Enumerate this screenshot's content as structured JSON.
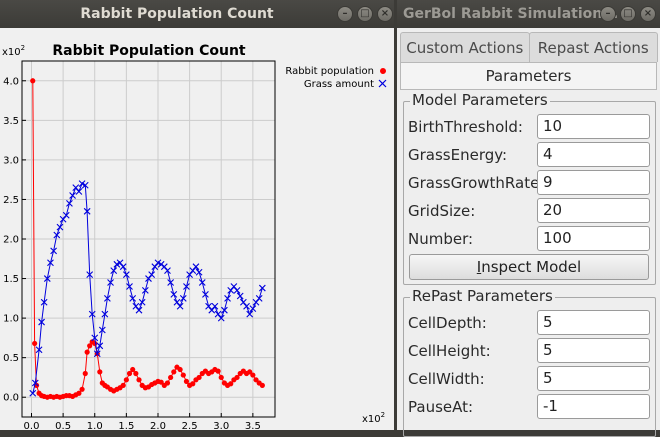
{
  "left_window": {
    "title": "Rabbit Population Count",
    "controls": [
      "–",
      "□",
      "×"
    ]
  },
  "chart": {
    "title": "Rabbit Population Count",
    "x_exponent_label": "x10",
    "x_exponent_power": "2",
    "y_exponent_label": "x10",
    "y_exponent_power": "2"
  },
  "chart_data": {
    "type": "line",
    "title": "Rabbit Population Count",
    "xlabel": "",
    "ylabel": "",
    "x_scale": "x10^2",
    "y_scale": "x10^2",
    "xlim": [
      -0.15,
      3.85
    ],
    "ylim": [
      -0.25,
      4.25
    ],
    "xticks": [
      "0.0",
      "0.5",
      "1.0",
      "1.5",
      "2.0",
      "2.5",
      "3.0",
      "3.5"
    ],
    "yticks": [
      "0.0",
      "0.5",
      "1.0",
      "1.5",
      "2.0",
      "2.5",
      "3.0",
      "3.5",
      "4.0"
    ],
    "grid": true,
    "legend_position": "top-right outside",
    "series": [
      {
        "name": "Rabbit population",
        "marker": "dot",
        "color": "#ff0000",
        "points": [
          [
            0.02,
            4.0
          ],
          [
            0.05,
            0.68
          ],
          [
            0.08,
            0.15
          ],
          [
            0.12,
            0.05
          ],
          [
            0.16,
            0.02
          ],
          [
            0.2,
            0.01
          ],
          [
            0.25,
            0.0
          ],
          [
            0.3,
            0.01
          ],
          [
            0.35,
            0.0
          ],
          [
            0.4,
            0.01
          ],
          [
            0.45,
            0.0
          ],
          [
            0.5,
            0.01
          ],
          [
            0.55,
            0.02
          ],
          [
            0.6,
            0.02
          ],
          [
            0.65,
            0.01
          ],
          [
            0.7,
            0.03
          ],
          [
            0.75,
            0.05
          ],
          [
            0.8,
            0.1
          ],
          [
            0.85,
            0.3
          ],
          [
            0.88,
            0.57
          ],
          [
            0.92,
            0.65
          ],
          [
            0.96,
            0.7
          ],
          [
            1.0,
            0.68
          ],
          [
            1.04,
            0.55
          ],
          [
            1.08,
            0.32
          ],
          [
            1.12,
            0.18
          ],
          [
            1.16,
            0.15
          ],
          [
            1.2,
            0.13
          ],
          [
            1.25,
            0.1
          ],
          [
            1.3,
            0.08
          ],
          [
            1.35,
            0.1
          ],
          [
            1.4,
            0.12
          ],
          [
            1.45,
            0.15
          ],
          [
            1.5,
            0.22
          ],
          [
            1.55,
            0.3
          ],
          [
            1.6,
            0.35
          ],
          [
            1.65,
            0.3
          ],
          [
            1.7,
            0.22
          ],
          [
            1.75,
            0.15
          ],
          [
            1.8,
            0.12
          ],
          [
            1.85,
            0.13
          ],
          [
            1.9,
            0.16
          ],
          [
            1.95,
            0.18
          ],
          [
            2.0,
            0.2
          ],
          [
            2.05,
            0.19
          ],
          [
            2.1,
            0.15
          ],
          [
            2.15,
            0.18
          ],
          [
            2.2,
            0.25
          ],
          [
            2.25,
            0.32
          ],
          [
            2.3,
            0.38
          ],
          [
            2.35,
            0.35
          ],
          [
            2.4,
            0.28
          ],
          [
            2.45,
            0.2
          ],
          [
            2.5,
            0.15
          ],
          [
            2.55,
            0.17
          ],
          [
            2.6,
            0.22
          ],
          [
            2.65,
            0.25
          ],
          [
            2.7,
            0.3
          ],
          [
            2.75,
            0.33
          ],
          [
            2.8,
            0.3
          ],
          [
            2.85,
            0.32
          ],
          [
            2.9,
            0.35
          ],
          [
            2.95,
            0.33
          ],
          [
            3.0,
            0.25
          ],
          [
            3.05,
            0.18
          ],
          [
            3.1,
            0.15
          ],
          [
            3.15,
            0.17
          ],
          [
            3.2,
            0.22
          ],
          [
            3.25,
            0.25
          ],
          [
            3.3,
            0.3
          ],
          [
            3.35,
            0.33
          ],
          [
            3.4,
            0.3
          ],
          [
            3.45,
            0.32
          ],
          [
            3.5,
            0.28
          ],
          [
            3.55,
            0.22
          ],
          [
            3.6,
            0.18
          ],
          [
            3.65,
            0.15
          ]
        ]
      },
      {
        "name": "Grass amount",
        "marker": "x",
        "color": "#0000dd",
        "points": [
          [
            0.02,
            0.05
          ],
          [
            0.06,
            0.18
          ],
          [
            0.12,
            0.6
          ],
          [
            0.16,
            0.95
          ],
          [
            0.2,
            1.2
          ],
          [
            0.25,
            1.5
          ],
          [
            0.3,
            1.7
          ],
          [
            0.35,
            1.85
          ],
          [
            0.4,
            2.05
          ],
          [
            0.45,
            2.15
          ],
          [
            0.5,
            2.25
          ],
          [
            0.55,
            2.3
          ],
          [
            0.6,
            2.45
          ],
          [
            0.65,
            2.55
          ],
          [
            0.7,
            2.65
          ],
          [
            0.75,
            2.6
          ],
          [
            0.8,
            2.7
          ],
          [
            0.85,
            2.68
          ],
          [
            0.88,
            2.35
          ],
          [
            0.92,
            1.55
          ],
          [
            0.96,
            1.05
          ],
          [
            1.0,
            0.75
          ],
          [
            1.04,
            0.55
          ],
          [
            1.08,
            0.65
          ],
          [
            1.12,
            0.85
          ],
          [
            1.16,
            1.05
          ],
          [
            1.2,
            1.25
          ],
          [
            1.25,
            1.45
          ],
          [
            1.3,
            1.6
          ],
          [
            1.35,
            1.68
          ],
          [
            1.4,
            1.7
          ],
          [
            1.45,
            1.65
          ],
          [
            1.5,
            1.55
          ],
          [
            1.55,
            1.4
          ],
          [
            1.6,
            1.25
          ],
          [
            1.65,
            1.15
          ],
          [
            1.7,
            1.1
          ],
          [
            1.75,
            1.2
          ],
          [
            1.8,
            1.35
          ],
          [
            1.85,
            1.5
          ],
          [
            1.9,
            1.55
          ],
          [
            1.95,
            1.65
          ],
          [
            2.0,
            1.7
          ],
          [
            2.05,
            1.68
          ],
          [
            2.1,
            1.65
          ],
          [
            2.15,
            1.6
          ],
          [
            2.2,
            1.45
          ],
          [
            2.25,
            1.3
          ],
          [
            2.3,
            1.2
          ],
          [
            2.35,
            1.15
          ],
          [
            2.4,
            1.25
          ],
          [
            2.45,
            1.4
          ],
          [
            2.5,
            1.55
          ],
          [
            2.55,
            1.6
          ],
          [
            2.6,
            1.65
          ],
          [
            2.65,
            1.58
          ],
          [
            2.7,
            1.45
          ],
          [
            2.75,
            1.3
          ],
          [
            2.8,
            1.15
          ],
          [
            2.85,
            1.1
          ],
          [
            2.9,
            1.15
          ],
          [
            2.95,
            1.05
          ],
          [
            3.0,
            1.0
          ],
          [
            3.05,
            1.1
          ],
          [
            3.1,
            1.25
          ],
          [
            3.15,
            1.35
          ],
          [
            3.2,
            1.4
          ],
          [
            3.25,
            1.35
          ],
          [
            3.3,
            1.28
          ],
          [
            3.35,
            1.2
          ],
          [
            3.4,
            1.15
          ],
          [
            3.45,
            1.05
          ],
          [
            3.5,
            1.12
          ],
          [
            3.55,
            1.2
          ],
          [
            3.6,
            1.25
          ],
          [
            3.65,
            1.38
          ]
        ]
      }
    ]
  },
  "right_window": {
    "title": "GerBol Rabbit Simulation...",
    "controls": [
      "–",
      "□",
      "×"
    ],
    "tabs": [
      "Custom Actions",
      "Repast Actions"
    ],
    "subtab": "Parameters",
    "model_group": {
      "title": "Model Parameters",
      "rows": [
        {
          "label": "BirthThreshold:",
          "value": "10"
        },
        {
          "label": "GrassEnergy:",
          "value": "4"
        },
        {
          "label": "GrassGrowthRate:",
          "value": "9"
        },
        {
          "label": "GridSize:",
          "value": "20"
        },
        {
          "label": "Number:",
          "value": "100"
        }
      ]
    },
    "inspect_button": {
      "underlined": "I",
      "rest": "nspect Model"
    },
    "repast_group": {
      "title": "RePast Parameters",
      "rows": [
        {
          "label": "CellDepth:",
          "value": "5"
        },
        {
          "label": "CellHeight:",
          "value": "5"
        },
        {
          "label": "CellWidth:",
          "value": "5"
        },
        {
          "label": "PauseAt:",
          "value": "-1"
        }
      ]
    }
  }
}
